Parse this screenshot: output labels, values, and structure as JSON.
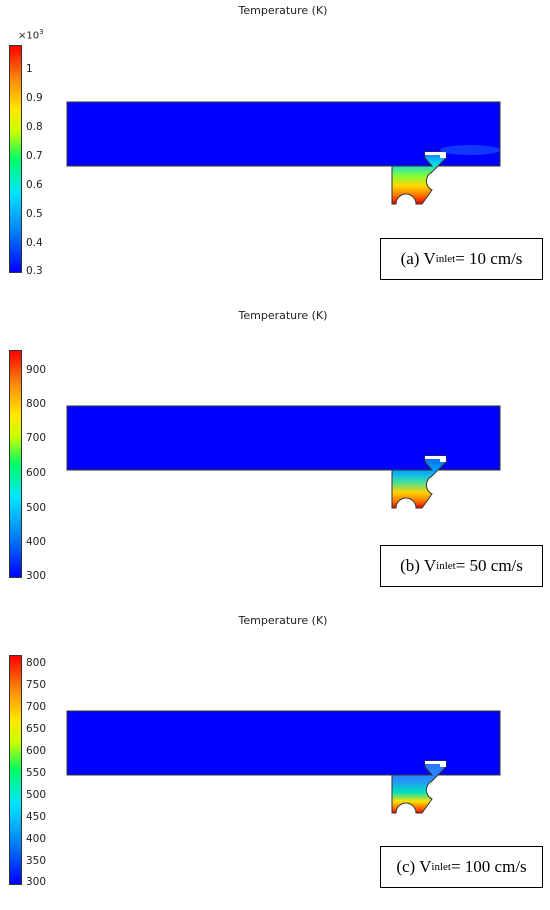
{
  "panels": [
    {
      "title": "Temperature (K)",
      "multiplier_base": "×10",
      "multiplier_exp": "3",
      "ticks": [
        "1",
        "0.9",
        "0.8",
        "0.7",
        "0.6",
        "0.5",
        "0.4",
        "0.3"
      ],
      "label_prefix": "(a) V",
      "label_sub": "inlet",
      "label_suffix": " = 10 cm/s",
      "colormap": "rainbow (blue→red)"
    },
    {
      "title": "Temperature (K)",
      "ticks": [
        "900",
        "800",
        "700",
        "600",
        "500",
        "400",
        "300"
      ],
      "label_prefix": "(b) V",
      "label_sub": "inlet",
      "label_suffix": " = 50 cm/s",
      "colormap": "rainbow (blue→red)"
    },
    {
      "title": "Temperature (K)",
      "ticks": [
        "800",
        "750",
        "700",
        "650",
        "600",
        "550",
        "500",
        "450",
        "400",
        "350",
        "300"
      ],
      "label_prefix": "(c) V",
      "label_sub": "inlet",
      "label_suffix": " = 100 cm/s",
      "colormap": "rainbow (blue→red)"
    }
  ]
}
